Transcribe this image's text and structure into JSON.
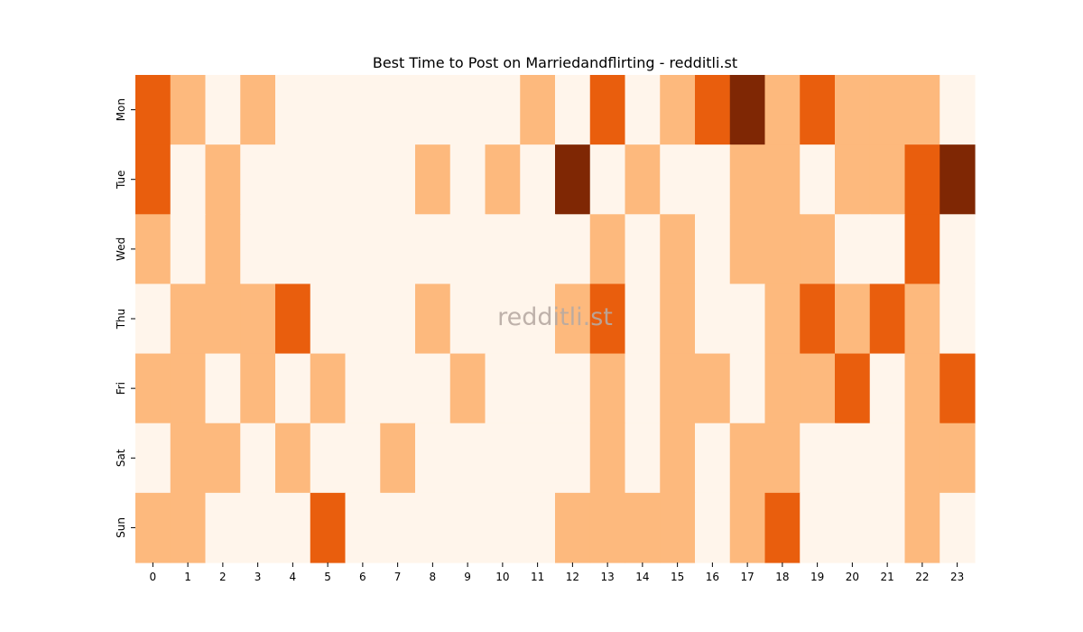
{
  "chart_data": {
    "type": "heatmap",
    "title": "Best Time to Post on Marriedandflirting - redditli.st",
    "watermark": "redditli.st",
    "xlabel": "",
    "ylabel": "",
    "x": [
      "0",
      "1",
      "2",
      "3",
      "4",
      "5",
      "6",
      "7",
      "8",
      "9",
      "10",
      "11",
      "12",
      "13",
      "14",
      "15",
      "16",
      "17",
      "18",
      "19",
      "20",
      "21",
      "22",
      "23"
    ],
    "y": [
      "Mon",
      "Tue",
      "Wed",
      "Thu",
      "Fri",
      "Sat",
      "Sun"
    ],
    "colormap": [
      "#fff5eb",
      "#fdb97d",
      "#e95e0d",
      "#7f2704"
    ],
    "values": [
      [
        2,
        1,
        0,
        1,
        0,
        0,
        0,
        0,
        0,
        0,
        0,
        1,
        0,
        2,
        0,
        1,
        2,
        3,
        1,
        2,
        1,
        1,
        1,
        0
      ],
      [
        2,
        0,
        1,
        0,
        0,
        0,
        0,
        0,
        1,
        0,
        1,
        0,
        3,
        0,
        1,
        0,
        0,
        1,
        1,
        0,
        1,
        1,
        2,
        3
      ],
      [
        1,
        0,
        1,
        0,
        0,
        0,
        0,
        0,
        0,
        0,
        0,
        0,
        0,
        1,
        0,
        1,
        0,
        1,
        1,
        1,
        0,
        0,
        2,
        0
      ],
      [
        0,
        1,
        1,
        1,
        2,
        0,
        0,
        0,
        1,
        0,
        0,
        0,
        1,
        2,
        0,
        1,
        0,
        0,
        1,
        2,
        1,
        2,
        1,
        0
      ],
      [
        1,
        1,
        0,
        1,
        0,
        1,
        0,
        0,
        0,
        1,
        0,
        0,
        0,
        1,
        0,
        1,
        1,
        0,
        1,
        1,
        2,
        0,
        1,
        2
      ],
      [
        0,
        1,
        1,
        0,
        1,
        0,
        0,
        1,
        0,
        0,
        0,
        0,
        0,
        1,
        0,
        1,
        0,
        1,
        1,
        0,
        0,
        0,
        1,
        1
      ],
      [
        1,
        1,
        0,
        0,
        0,
        2,
        0,
        0,
        0,
        0,
        0,
        0,
        1,
        1,
        1,
        1,
        0,
        1,
        2,
        0,
        0,
        0,
        1,
        0
      ]
    ],
    "legend": "none",
    "grid": false
  }
}
